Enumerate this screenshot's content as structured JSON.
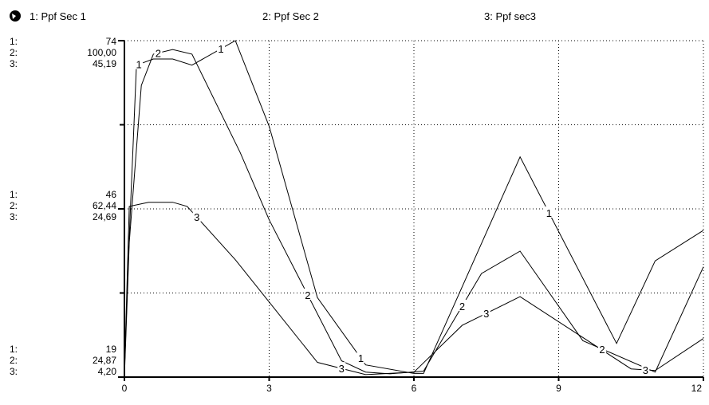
{
  "legend": [
    {
      "label": "1: Ppf Sec 1"
    },
    {
      "label": "2: Ppf Sec 2"
    },
    {
      "label": "3: Ppf sec3"
    }
  ],
  "chart_data": {
    "type": "line",
    "title": "",
    "xlabel": "",
    "ylabel": "",
    "grid": true,
    "x_ticks": [
      "0",
      "3",
      "6",
      "9",
      "12"
    ],
    "xlim": [
      0,
      12
    ],
    "y_axis_labels": [
      {
        "series_prefixes": [
          "1:",
          "2:",
          "3:"
        ],
        "values": [
          "74",
          "100,00",
          "45,19"
        ]
      },
      {
        "series_prefixes": [
          "1:",
          "2:",
          "3:"
        ],
        "values": [
          "46",
          "62,44",
          "24,69"
        ]
      },
      {
        "series_prefixes": [
          "1:",
          "2:",
          "3:"
        ],
        "values": [
          "19",
          "24,87",
          "4,20"
        ]
      }
    ],
    "series": [
      {
        "name": "1: Ppf Sec 1",
        "marker": "1",
        "ylim": [
          19,
          74
        ],
        "x": [
          0,
          0.1,
          0.25,
          0.6,
          1.0,
          1.4,
          2.3,
          3.0,
          4.0,
          5.0,
          6.0,
          6.2,
          8.2,
          10.2,
          11.0,
          12.0
        ],
        "y": [
          20,
          42,
          70,
          71,
          71,
          70,
          74,
          60,
          32,
          21,
          19.6,
          19.6,
          55,
          24.5,
          38,
          43
        ]
      },
      {
        "name": "2: Ppf Sec 2",
        "marker": "2",
        "ylim": [
          24.87,
          100
        ],
        "x": [
          0,
          0.1,
          0.35,
          0.6,
          1.0,
          1.4,
          2.4,
          3.0,
          4.5,
          5.0,
          5.5,
          6.2,
          7.4,
          8.2,
          9.5,
          11.0,
          12.0
        ],
        "y": [
          25,
          55,
          90,
          97,
          98,
          97,
          75,
          60,
          28.5,
          26,
          25.6,
          26.2,
          48,
          53,
          33,
          26,
          49.5
        ]
      },
      {
        "name": "3: Ppf sec3",
        "marker": "3",
        "ylim": [
          4.2,
          45.19
        ],
        "x": [
          0,
          0.1,
          0.5,
          1.0,
          1.3,
          2.3,
          4.0,
          5.0,
          6.0,
          7.0,
          8.2,
          10.5,
          11.0,
          12.0
        ],
        "y": [
          4.5,
          25,
          25.5,
          25.5,
          25,
          18.5,
          6,
          4.5,
          4.8,
          10.5,
          14,
          5.2,
          5.0,
          8.9
        ]
      }
    ]
  }
}
